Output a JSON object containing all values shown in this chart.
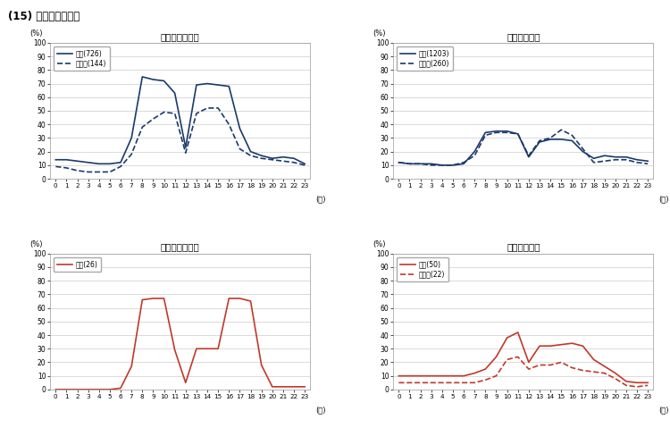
{
  "title": "(15) 保安職業従事者",
  "hours": [
    0,
    1,
    2,
    3,
    4,
    5,
    6,
    7,
    8,
    9,
    10,
    11,
    12,
    13,
    14,
    15,
    16,
    17,
    18,
    19,
    20,
    21,
    22,
    23
  ],
  "male_weekday_regular": [
    14,
    14,
    13,
    12,
    11,
    11,
    12,
    30,
    75,
    73,
    72,
    63,
    23,
    69,
    70,
    69,
    68,
    37,
    20,
    17,
    15,
    16,
    15,
    11
  ],
  "male_weekday_irregular": [
    9,
    8,
    6,
    5,
    5,
    5,
    9,
    18,
    38,
    44,
    49,
    48,
    19,
    48,
    52,
    52,
    40,
    22,
    17,
    15,
    14,
    13,
    12,
    10
  ],
  "male_weekend_regular": [
    12,
    11,
    11,
    11,
    10,
    10,
    11,
    20,
    34,
    35,
    35,
    33,
    16,
    27,
    29,
    29,
    28,
    20,
    15,
    17,
    16,
    16,
    14,
    13
  ],
  "male_weekend_irregular": [
    12,
    11,
    11,
    10,
    10,
    10,
    12,
    17,
    32,
    34,
    34,
    33,
    17,
    28,
    30,
    36,
    32,
    22,
    12,
    13,
    14,
    14,
    12,
    11
  ],
  "female_weekday_regular": [
    0,
    0,
    0,
    0,
    0,
    0,
    1,
    17,
    66,
    67,
    67,
    29,
    5,
    30,
    30,
    30,
    67,
    67,
    65,
    18,
    2,
    2,
    2,
    2
  ],
  "female_weekend_regular": [
    10,
    10,
    10,
    10,
    10,
    10,
    10,
    12,
    15,
    24,
    38,
    42,
    20,
    32,
    32,
    33,
    34,
    32,
    22,
    17,
    12,
    6,
    5,
    5
  ],
  "female_weekend_irregular": [
    5,
    5,
    5,
    5,
    5,
    5,
    5,
    5,
    7,
    10,
    22,
    24,
    15,
    18,
    18,
    20,
    16,
    14,
    13,
    12,
    8,
    3,
    2,
    3
  ],
  "navy": "#1a3a6b",
  "red": "#c0392b",
  "subplot_titles": [
    "男性（月～金）",
    "男性（土日）",
    "女性（月～金）",
    "女性（土日）"
  ],
  "legend_tl": [
    "正規(726)",
    "非正規(144)"
  ],
  "legend_tr": [
    "正規(1203)",
    "非正規(260)"
  ],
  "legend_bl": [
    "正規(26)"
  ],
  "legend_br": [
    "正規(50)",
    "非正規(22)"
  ],
  "ylabel": "(%)",
  "xlabel": "(時)"
}
